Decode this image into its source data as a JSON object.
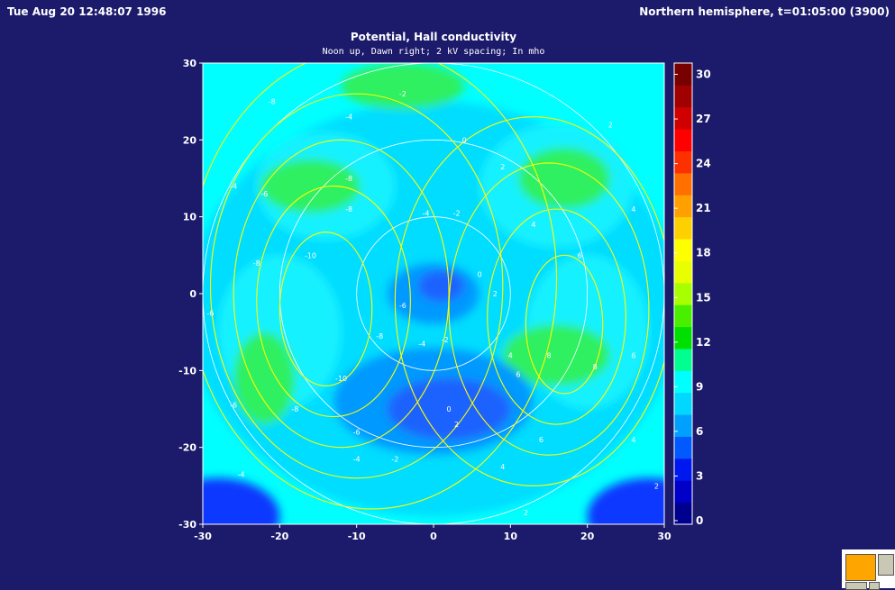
{
  "header": {
    "datetime": "Tue Aug 20 12:48:07 1996",
    "run_info": "Northern hemisphere, t=01:05:00 (3900)"
  },
  "chart_data": {
    "type": "heatmap",
    "title": "Potential, Hall conductivity",
    "subtitle": "Noon up, Dawn right; 2 kV spacing; In mho",
    "xlim": [
      -30,
      30
    ],
    "ylim": [
      -30,
      30
    ],
    "x_ticks": [
      -30,
      -20,
      -10,
      0,
      10,
      20,
      30
    ],
    "y_ticks": [
      30,
      20,
      10,
      0,
      -10,
      -20,
      -30
    ],
    "colorbar": {
      "range": [
        0,
        31
      ],
      "ticks": [
        0,
        3,
        6,
        9,
        12,
        15,
        18,
        21,
        24,
        27,
        30
      ],
      "colors": [
        "#00008f",
        "#0000c8",
        "#0018f0",
        "#005aff",
        "#00a0ff",
        "#00d8ff",
        "#00ffff",
        "#00ff90",
        "#00e000",
        "#48f000",
        "#a8ff00",
        "#e8ff00",
        "#ffff00",
        "#ffd000",
        "#ffa000",
        "#ff7000",
        "#ff3000",
        "#ff0000",
        "#d00000",
        "#a00000",
        "#780000"
      ]
    },
    "conductivity_levels": [
      {
        "level": 4.5,
        "color": "#00ddff",
        "center": [
          0,
          -2
        ],
        "rx": 32,
        "ry": 27
      },
      {
        "level": 6,
        "color": "#17f1ff",
        "center": [
          -14,
          14
        ],
        "rx": 9,
        "ry": 7
      },
      {
        "level": 6,
        "color": "#17f1ff",
        "center": [
          16,
          14
        ],
        "rx": 10,
        "ry": 8
      },
      {
        "level": 6,
        "color": "#17f1ff",
        "center": [
          -20,
          -5
        ],
        "rx": 8,
        "ry": 10
      },
      {
        "level": 6,
        "color": "#17f1ff",
        "center": [
          20,
          -5
        ],
        "rx": 8,
        "ry": 10
      },
      {
        "level": 10,
        "color": "#2ef060",
        "center": [
          -16,
          14
        ],
        "rx": 6.5,
        "ry": 3.5
      },
      {
        "level": 10,
        "color": "#2ef060",
        "center": [
          17,
          15
        ],
        "rx": 6,
        "ry": 4
      },
      {
        "level": 10,
        "color": "#2ef060",
        "center": [
          -22,
          -11
        ],
        "rx": 4,
        "ry": 6
      },
      {
        "level": 10,
        "color": "#2ef060",
        "center": [
          16,
          -8
        ],
        "rx": 7,
        "ry": 4
      },
      {
        "level": 10,
        "color": "#2ef060",
        "center": [
          -4,
          27
        ],
        "rx": 8,
        "ry": 3
      },
      {
        "level": 3,
        "color": "#0099ff",
        "center": [
          0,
          0
        ],
        "rx": 6,
        "ry": 4
      },
      {
        "level": 3,
        "color": "#0099ff",
        "center": [
          0,
          -14
        ],
        "rx": 13,
        "ry": 7
      },
      {
        "level": 1.5,
        "color": "#1b62ff",
        "center": [
          2,
          -15
        ],
        "rx": 8,
        "ry": 4
      },
      {
        "level": 1.5,
        "color": "#1b62ff",
        "center": [
          1,
          1
        ],
        "rx": 3,
        "ry": 2
      },
      {
        "level": 1.5,
        "color": "#0a39ff",
        "center": [
          -28,
          -29
        ],
        "rx": 8,
        "ry": 5
      },
      {
        "level": 1.5,
        "color": "#0a39ff",
        "center": [
          28,
          -29
        ],
        "rx": 8,
        "ry": 5
      }
    ],
    "latitude_rings_radius": [
      10,
      20,
      30
    ],
    "potential_contours": [
      {
        "center": [
          -14,
          -2
        ],
        "rx": 6,
        "ry": 10,
        "label": "-10"
      },
      {
        "center": [
          -13,
          -1
        ],
        "rx": 10,
        "ry": 15,
        "label": "-8"
      },
      {
        "center": [
          -12,
          0
        ],
        "rx": 14,
        "ry": 20,
        "label": "-6"
      },
      {
        "center": [
          -10,
          1
        ],
        "rx": 19,
        "ry": 25,
        "label": "-4"
      },
      {
        "center": [
          -8,
          2
        ],
        "rx": 24,
        "ry": 30,
        "label": "-2"
      },
      {
        "center": [
          17,
          -4
        ],
        "rx": 5,
        "ry": 9,
        "label": "8"
      },
      {
        "center": [
          16,
          -3
        ],
        "rx": 9,
        "ry": 14,
        "label": "6"
      },
      {
        "center": [
          15,
          -2
        ],
        "rx": 13,
        "ry": 19,
        "label": "4"
      },
      {
        "center": [
          13,
          -1
        ],
        "rx": 18,
        "ry": 24,
        "label": "2"
      }
    ],
    "contour_labels": [
      {
        "x": -21,
        "y": 25,
        "label": "-8"
      },
      {
        "x": -11,
        "y": 23,
        "label": "-4"
      },
      {
        "x": -4,
        "y": 26,
        "label": "-2"
      },
      {
        "x": 4,
        "y": 20,
        "label": "0"
      },
      {
        "x": 9,
        "y": 16.5,
        "label": "2"
      },
      {
        "x": 23,
        "y": 22,
        "label": "2"
      },
      {
        "x": -26,
        "y": 14,
        "label": "-4"
      },
      {
        "x": -22,
        "y": 13,
        "label": "-6"
      },
      {
        "x": -11,
        "y": 15,
        "label": "-8"
      },
      {
        "x": -11,
        "y": 11,
        "label": "-8"
      },
      {
        "x": -1,
        "y": 10.5,
        "label": "-4"
      },
      {
        "x": 3,
        "y": 10.5,
        "label": "-2"
      },
      {
        "x": 13,
        "y": 9,
        "label": "4"
      },
      {
        "x": 26,
        "y": 11,
        "label": "4"
      },
      {
        "x": -23,
        "y": 4,
        "label": "-8"
      },
      {
        "x": -16,
        "y": 5,
        "label": "-10"
      },
      {
        "x": 19,
        "y": 5,
        "label": "6"
      },
      {
        "x": 6,
        "y": 2.5,
        "label": "0"
      },
      {
        "x": 8,
        "y": 0,
        "label": "2"
      },
      {
        "x": -4,
        "y": -1.5,
        "label": "-6"
      },
      {
        "x": -29,
        "y": -2.5,
        "label": "-6"
      },
      {
        "x": -7,
        "y": -5.5,
        "label": "-8"
      },
      {
        "x": -1.5,
        "y": -6.5,
        "label": "-4"
      },
      {
        "x": 1.5,
        "y": -6,
        "label": "-2"
      },
      {
        "x": 10,
        "y": -8,
        "label": "4"
      },
      {
        "x": 15,
        "y": -8,
        "label": "8"
      },
      {
        "x": 21,
        "y": -9.5,
        "label": "8"
      },
      {
        "x": 26,
        "y": -8,
        "label": "6"
      },
      {
        "x": 11,
        "y": -10.5,
        "label": "6"
      },
      {
        "x": -12,
        "y": -11,
        "label": "-10"
      },
      {
        "x": -26,
        "y": -14.5,
        "label": "-6"
      },
      {
        "x": -18,
        "y": -15,
        "label": "-8"
      },
      {
        "x": 2,
        "y": -15,
        "label": "0"
      },
      {
        "x": 3,
        "y": -17,
        "label": "2"
      },
      {
        "x": -10,
        "y": -18,
        "label": "-6"
      },
      {
        "x": 14,
        "y": -19,
        "label": "6"
      },
      {
        "x": 26,
        "y": -19,
        "label": "4"
      },
      {
        "x": -10,
        "y": -21.5,
        "label": "-4"
      },
      {
        "x": -5,
        "y": -21.5,
        "label": "-2"
      },
      {
        "x": 9,
        "y": -22.5,
        "label": "4"
      },
      {
        "x": -25,
        "y": -23.5,
        "label": "-4"
      },
      {
        "x": 12,
        "y": -28.5,
        "label": "2"
      },
      {
        "x": 29,
        "y": -25,
        "label": "2"
      }
    ],
    "grid": false,
    "legend": "colorbar-right"
  },
  "colors": {
    "background": "#1c1a6b",
    "plot_base": "#00ffff",
    "contour": "#ffff00",
    "ring": "#ffffff"
  }
}
